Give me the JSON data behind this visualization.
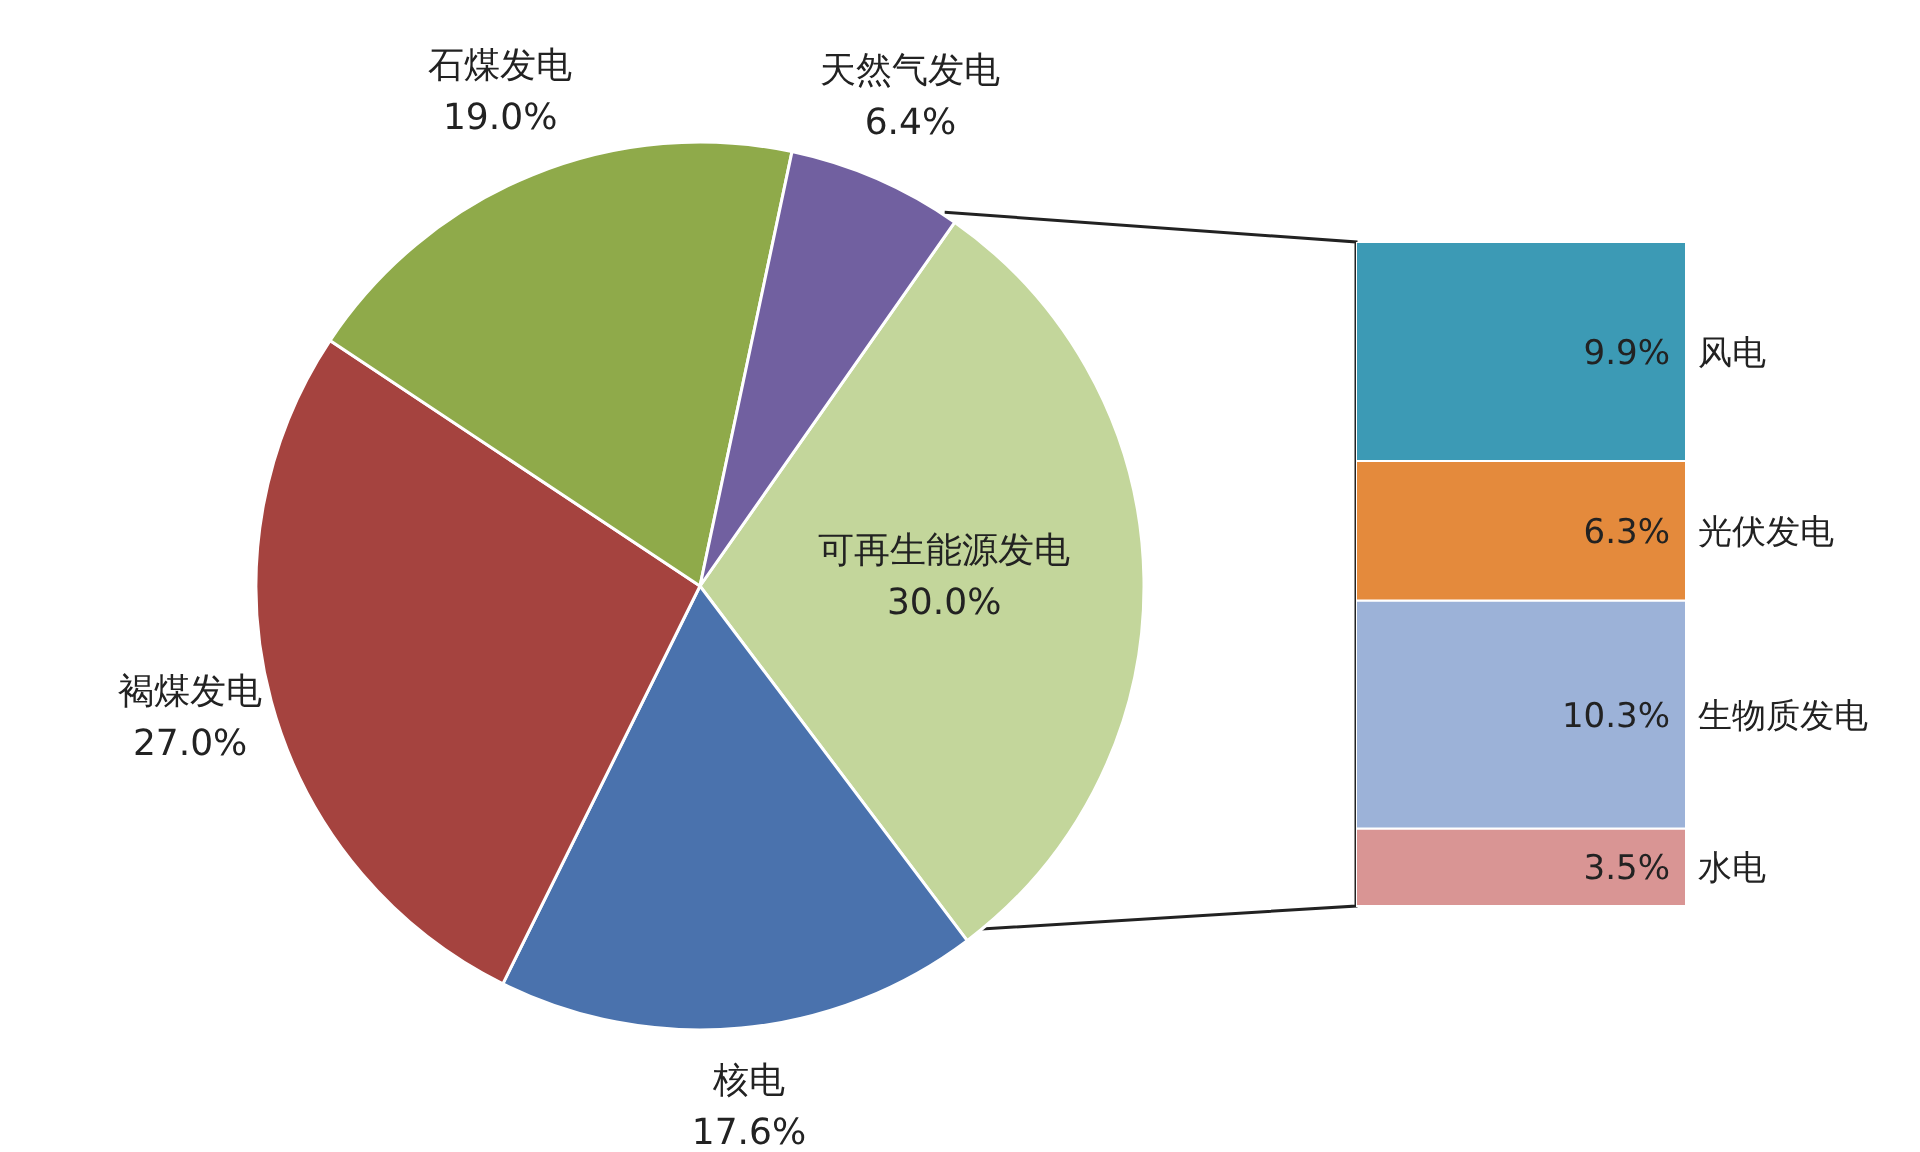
{
  "chart_data": [
    {
      "type": "pie",
      "categories": [
        "可再生能源发电",
        "核电",
        "褐煤发电",
        "石煤发电",
        "天然气发电"
      ],
      "values": [
        30.0,
        17.6,
        27.0,
        19.0,
        6.4
      ],
      "colors": [
        "#c3d69b",
        "#4a72ad",
        "#a5433f",
        "#8faa4a",
        "#7160a0"
      ],
      "value_labels": [
        "30.0%",
        "17.6%",
        "27.0%",
        "19.0%",
        "6.4%"
      ]
    },
    {
      "type": "bar",
      "stacked": true,
      "categories": [
        null
      ],
      "series": [
        {
          "name": "水电",
          "color": "#d99594",
          "values": [
            3.5
          ],
          "value_labels": [
            "3.5%"
          ]
        },
        {
          "name": "生物质发电",
          "color": "#9cb2d8",
          "values": [
            10.3
          ],
          "value_labels": [
            "10.3%"
          ]
        },
        {
          "name": "光伏发电",
          "color": "#e48a3c",
          "values": [
            6.3
          ],
          "value_labels": [
            "6.3%"
          ]
        },
        {
          "name": "风电",
          "color": "#3c9ab5",
          "values": [
            9.9
          ],
          "value_labels": [
            "9.9%"
          ]
        }
      ]
    }
  ]
}
